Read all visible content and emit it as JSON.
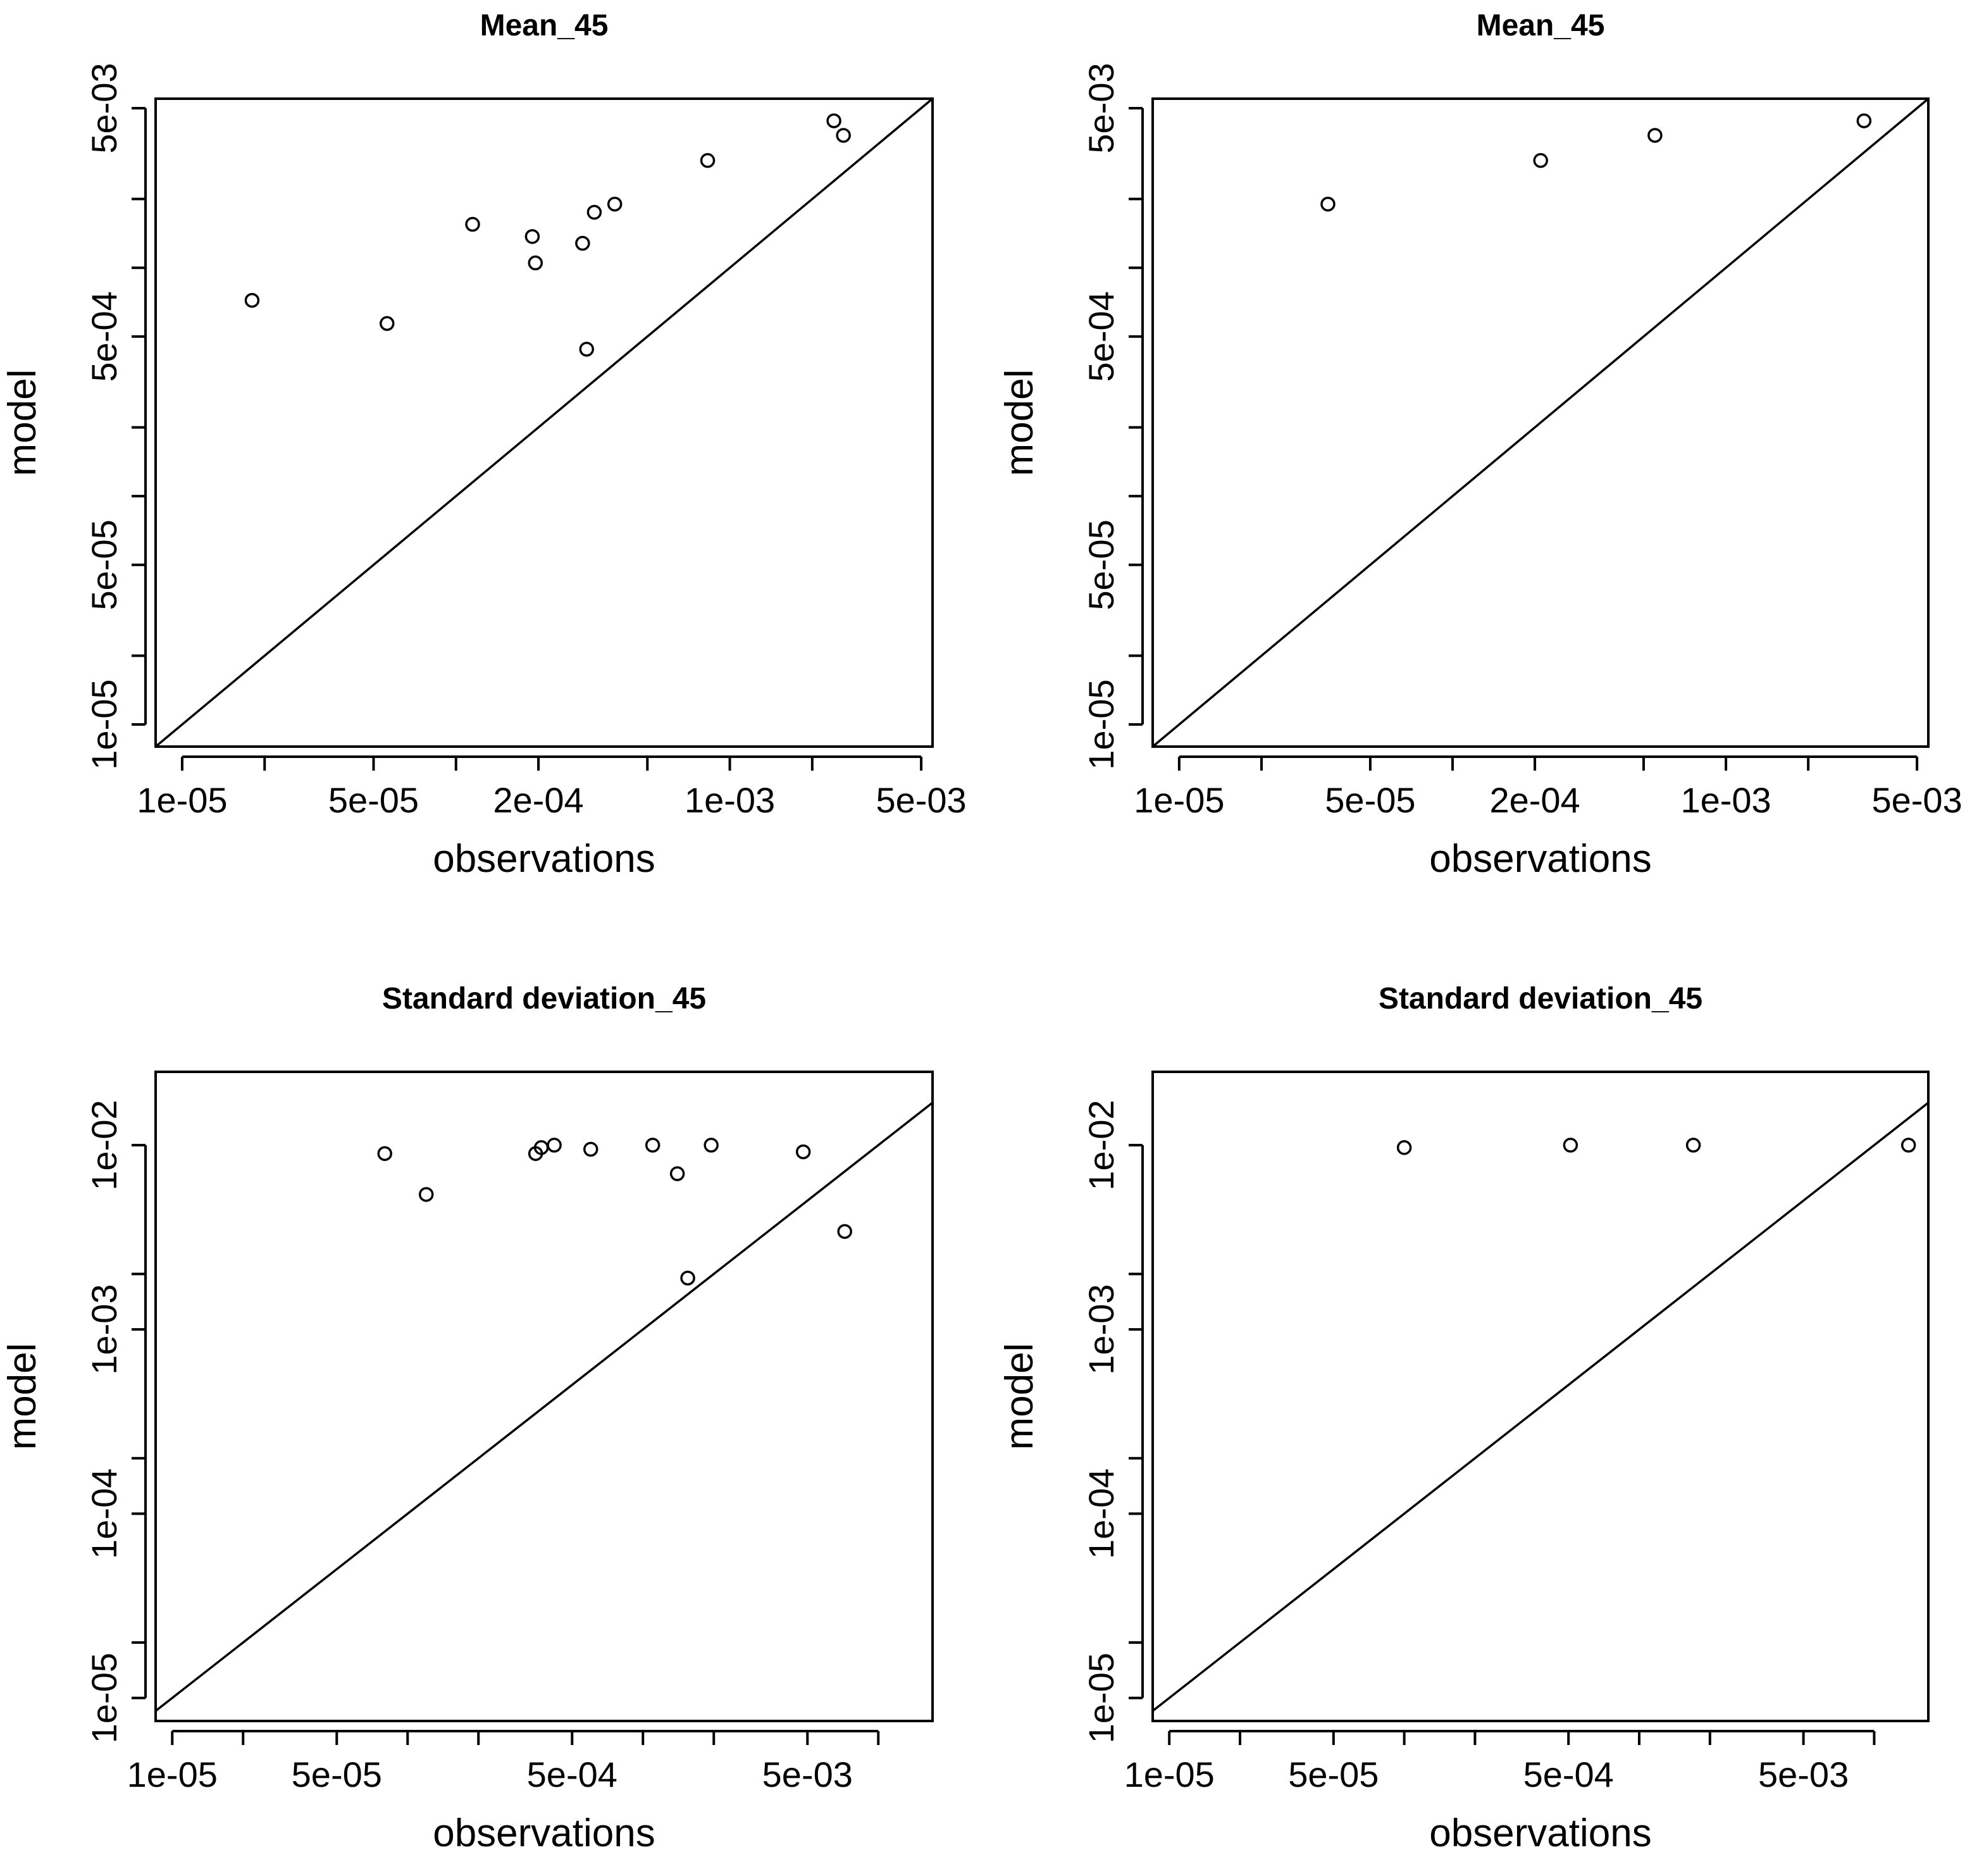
{
  "chart_data": [
    {
      "type": "scatter",
      "title": "Mean_45",
      "xlabel": "observations",
      "ylabel": "model",
      "scale": "log",
      "xlim": [
        8e-06,
        0.0055
      ],
      "ylim": [
        8e-06,
        0.0055
      ],
      "x_ticks": [
        1e-05,
        2e-05,
        5e-05,
        0.0001,
        0.0002,
        0.0005,
        0.001,
        0.002,
        0.005
      ],
      "x_tick_labels": [
        "1e-05",
        "",
        "5e-05",
        "",
        "2e-04",
        "",
        "1e-03",
        "",
        "5e-03"
      ],
      "y_ticks": [
        1e-05,
        2e-05,
        5e-05,
        0.0001,
        0.0002,
        0.0005,
        0.001,
        0.002,
        0.005
      ],
      "y_tick_labels": [
        "1e-05",
        "",
        "5e-05",
        "",
        "",
        "5e-04",
        "",
        "",
        "5e-03"
      ],
      "reference_line": "y = x",
      "points": [
        {
          "x": 1.8e-05,
          "y": 0.00072
        },
        {
          "x": 5.6e-05,
          "y": 0.00057
        },
        {
          "x": 0.000115,
          "y": 0.00155
        },
        {
          "x": 0.00019,
          "y": 0.00137
        },
        {
          "x": 0.000195,
          "y": 0.00105
        },
        {
          "x": 0.00029,
          "y": 0.00128
        },
        {
          "x": 0.0003,
          "y": 0.00044
        },
        {
          "x": 0.00032,
          "y": 0.00175
        },
        {
          "x": 0.00038,
          "y": 0.0019
        },
        {
          "x": 0.00083,
          "y": 0.00295
        },
        {
          "x": 0.0024,
          "y": 0.0044
        },
        {
          "x": 0.0026,
          "y": 0.0038
        }
      ]
    },
    {
      "type": "scatter",
      "title": "Mean_45",
      "xlabel": "observations",
      "ylabel": "model",
      "scale": "log",
      "xlim": [
        8e-06,
        0.0055
      ],
      "ylim": [
        8e-06,
        0.0055
      ],
      "x_ticks": [
        1e-05,
        2e-05,
        5e-05,
        0.0001,
        0.0002,
        0.0005,
        0.001,
        0.002,
        0.005
      ],
      "x_tick_labels": [
        "1e-05",
        "",
        "5e-05",
        "",
        "2e-04",
        "",
        "1e-03",
        "",
        "5e-03"
      ],
      "y_ticks": [
        1e-05,
        2e-05,
        5e-05,
        0.0001,
        0.0002,
        0.0005,
        0.001,
        0.002,
        0.005
      ],
      "y_tick_labels": [
        "1e-05",
        "",
        "5e-05",
        "",
        "",
        "5e-04",
        "",
        "",
        "5e-03"
      ],
      "reference_line": "y = x",
      "points": [
        {
          "x": 3.5e-05,
          "y": 0.0019
        },
        {
          "x": 0.00021,
          "y": 0.00295
        },
        {
          "x": 0.00055,
          "y": 0.0038
        },
        {
          "x": 0.0032,
          "y": 0.0044
        }
      ]
    },
    {
      "type": "scatter",
      "title": "Standard deviation_45",
      "xlabel": "observations",
      "ylabel": "model",
      "scale": "log",
      "xlim": [
        8.5e-06,
        0.017
      ],
      "ylim": [
        7.5e-06,
        0.025
      ],
      "x_ticks": [
        1e-05,
        2e-05,
        5e-05,
        0.0001,
        0.0002,
        0.0005,
        0.001,
        0.002,
        0.005,
        0.01
      ],
      "x_tick_labels": [
        "1e-05",
        "",
        "5e-05",
        "",
        "",
        "5e-04",
        "",
        "",
        "5e-03",
        ""
      ],
      "y_ticks": [
        1e-05,
        2e-05,
        0.0001,
        0.0002,
        0.001,
        0.002,
        0.01
      ],
      "y_tick_labels": [
        "1e-05",
        "",
        "1e-04",
        "",
        "1e-03",
        "",
        "1e-02"
      ],
      "reference_line": "y = x",
      "points": [
        {
          "x": 8e-05,
          "y": 0.009
        },
        {
          "x": 0.00012,
          "y": 0.0054
        },
        {
          "x": 0.00035,
          "y": 0.009
        },
        {
          "x": 0.00037,
          "y": 0.0097
        },
        {
          "x": 0.00042,
          "y": 0.01
        },
        {
          "x": 0.0006,
          "y": 0.0095
        },
        {
          "x": 0.0011,
          "y": 0.01
        },
        {
          "x": 0.0014,
          "y": 0.007
        },
        {
          "x": 0.00155,
          "y": 0.0019
        },
        {
          "x": 0.00195,
          "y": 0.01
        },
        {
          "x": 0.0048,
          "y": 0.0092
        },
        {
          "x": 0.0072,
          "y": 0.0034
        }
      ]
    },
    {
      "type": "scatter",
      "title": "Standard deviation_45",
      "xlabel": "observations",
      "ylabel": "model",
      "scale": "log",
      "xlim": [
        8.5e-06,
        0.017
      ],
      "ylim": [
        7.5e-06,
        0.025
      ],
      "x_ticks": [
        1e-05,
        2e-05,
        5e-05,
        0.0001,
        0.0002,
        0.0005,
        0.001,
        0.002,
        0.005,
        0.01
      ],
      "x_tick_labels": [
        "1e-05",
        "",
        "5e-05",
        "",
        "",
        "5e-04",
        "",
        "",
        "5e-03",
        ""
      ],
      "y_ticks": [
        1e-05,
        2e-05,
        0.0001,
        0.0002,
        0.001,
        0.002,
        0.01
      ],
      "y_tick_labels": [
        "1e-05",
        "",
        "1e-04",
        "",
        "1e-03",
        "",
        "1e-02"
      ],
      "reference_line": "y = x",
      "points": [
        {
          "x": 0.0001,
          "y": 0.0097
        },
        {
          "x": 0.00051,
          "y": 0.01
        },
        {
          "x": 0.0017,
          "y": 0.01
        },
        {
          "x": 0.014,
          "y": 0.01
        }
      ]
    }
  ]
}
